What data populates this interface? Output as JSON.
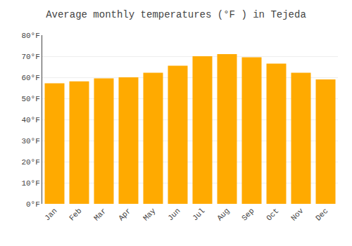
{
  "chart_data": {
    "type": "bar",
    "title": "Average monthly temperatures (°F ) in Tejeda",
    "categories": [
      "Jan",
      "Feb",
      "Mar",
      "Apr",
      "May",
      "Jun",
      "Jul",
      "Aug",
      "Sep",
      "Oct",
      "Nov",
      "Dec"
    ],
    "values": [
      57.2,
      58.1,
      59.5,
      60.0,
      62.2,
      65.5,
      70.0,
      71.0,
      69.5,
      66.5,
      62.2,
      59.0
    ],
    "color": "#FFAA00",
    "ylim": [
      0,
      80
    ],
    "yticks": [
      {
        "value": 0,
        "label": "0°F"
      },
      {
        "value": 10,
        "label": "10°F"
      },
      {
        "value": 20,
        "label": "20°F"
      },
      {
        "value": 30,
        "label": "30°F"
      },
      {
        "value": 40,
        "label": "40°F"
      },
      {
        "value": 50,
        "label": "50°F"
      },
      {
        "value": 60,
        "label": "60°F"
      },
      {
        "value": 70,
        "label": "70°F"
      },
      {
        "value": 80,
        "label": "80°F"
      }
    ],
    "grid": true
  }
}
